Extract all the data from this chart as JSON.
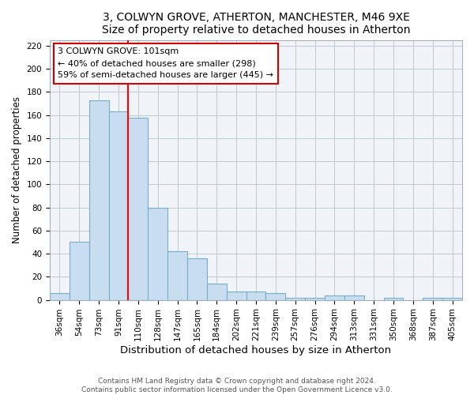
{
  "title": "3, COLWYN GROVE, ATHERTON, MANCHESTER, M46 9XE",
  "subtitle": "Size of property relative to detached houses in Atherton",
  "xlabel": "Distribution of detached houses by size in Atherton",
  "ylabel": "Number of detached properties",
  "categories": [
    "36sqm",
    "54sqm",
    "73sqm",
    "91sqm",
    "110sqm",
    "128sqm",
    "147sqm",
    "165sqm",
    "184sqm",
    "202sqm",
    "221sqm",
    "239sqm",
    "257sqm",
    "276sqm",
    "294sqm",
    "313sqm",
    "331sqm",
    "350sqm",
    "368sqm",
    "387sqm",
    "405sqm"
  ],
  "values": [
    6,
    50,
    173,
    163,
    158,
    80,
    42,
    36,
    14,
    7,
    7,
    6,
    2,
    2,
    4,
    4,
    0,
    2,
    0,
    2,
    2
  ],
  "bar_color": "#c8ddef",
  "bar_edge_color": "#7aaec8",
  "red_line_x": 3.5,
  "annotation_title": "3 COLWYN GROVE: 101sqm",
  "annotation_line1": "← 40% of detached houses are smaller (298)",
  "annotation_line2": "59% of semi-detached houses are larger (445) →",
  "annotation_box_color": "#ffffff",
  "annotation_box_edge_color": "#cc0000",
  "ylim": [
    0,
    225
  ],
  "yticks": [
    0,
    20,
    40,
    60,
    80,
    100,
    120,
    140,
    160,
    180,
    200,
    220
  ],
  "footer_line1": "Contains HM Land Registry data © Crown copyright and database right 2024.",
  "footer_line2": "Contains public sector information licensed under the Open Government Licence v3.0.",
  "title_fontsize": 10,
  "xlabel_fontsize": 9.5,
  "ylabel_fontsize": 8.5,
  "tick_fontsize": 7.5,
  "annotation_fontsize": 8,
  "footer_fontsize": 6.5,
  "bg_color": "#f0f4f8"
}
